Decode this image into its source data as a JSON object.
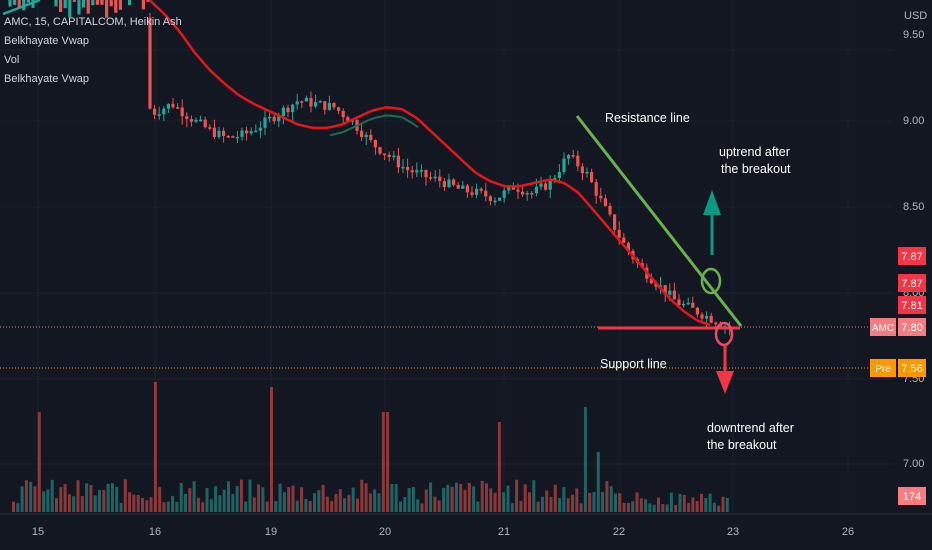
{
  "legend": {
    "symbol": "AMC, 15, CAPITALCOM, Heikin Ash",
    "ind1": "Belkhayate Vwap",
    "ind2": "Vol",
    "ind3": "Belkhayate Vwap"
  },
  "annotations": {
    "resistance": "Resistance line",
    "support": "Support line",
    "uptrend1": "uptrend after",
    "uptrend2": "the breakout",
    "downtrend1": "downtrend after",
    "downtrend2": "the breakout"
  },
  "price_scale": {
    "currency": "USD",
    "ticks": [
      "9.50",
      "9.00",
      "8.50",
      "8.00",
      "7.50",
      "7.00"
    ]
  },
  "price_labels": [
    {
      "text": "7.87",
      "color": "#f23645"
    },
    {
      "text": "7.87",
      "color": "#f23645"
    },
    {
      "text": "7.81",
      "color": "#f23645"
    },
    {
      "tag": "AMC",
      "text": "7.80",
      "color": "#f77c80"
    },
    {
      "tag": "Pre",
      "text": "7.56",
      "color": "#ff9800"
    },
    {
      "text": "174",
      "color": "#f77c80"
    }
  ],
  "colors": {
    "background": "#131722",
    "up_candle": "#26a69a",
    "down_candle": "#ef5350",
    "vwap": "#e5171a",
    "resistance_line": "#6ab04c",
    "support_line": "#f23645",
    "arrow_up": "#089981",
    "arrow_down": "#f23645"
  },
  "chart_data": {
    "type": "candlestick",
    "symbol": "AMC",
    "timeframe": "15",
    "x_ticks": [
      "15",
      "16",
      "19",
      "20",
      "21",
      "22",
      "23",
      "26"
    ],
    "ylim": [
      6.85,
      9.62
    ],
    "last_price": 7.8,
    "premarket_price": 7.56,
    "last_volume": "174",
    "close_series": [
      9.6,
      9.58,
      9.55,
      9.45,
      9.38,
      9.3,
      9.2,
      9.15,
      9.05,
      9.1,
      9.02,
      8.95,
      8.9,
      8.92,
      8.98,
      9.05,
      9.12,
      9.1,
      9.08,
      9.0,
      8.88,
      8.8,
      8.72,
      8.68,
      8.65,
      8.6,
      8.58,
      8.55,
      8.62,
      8.58,
      8.64,
      8.8,
      8.7,
      8.5,
      8.3,
      8.15,
      8.05,
      7.95,
      7.9,
      7.85,
      7.8
    ],
    "vwap_series": [
      9.7,
      9.62,
      9.52,
      9.4,
      9.3,
      9.22,
      9.15,
      9.1,
      9.06,
      9.02,
      8.98,
      8.96,
      8.96,
      8.98,
      9.02,
      9.06,
      9.08,
      9.07,
      9.02,
      8.94,
      8.86,
      8.78,
      8.7,
      8.65,
      8.62,
      8.62,
      8.64,
      8.66,
      8.64,
      8.58,
      8.48,
      8.38,
      8.28,
      8.18,
      8.08,
      7.98,
      7.9,
      7.84,
      7.81
    ]
  }
}
